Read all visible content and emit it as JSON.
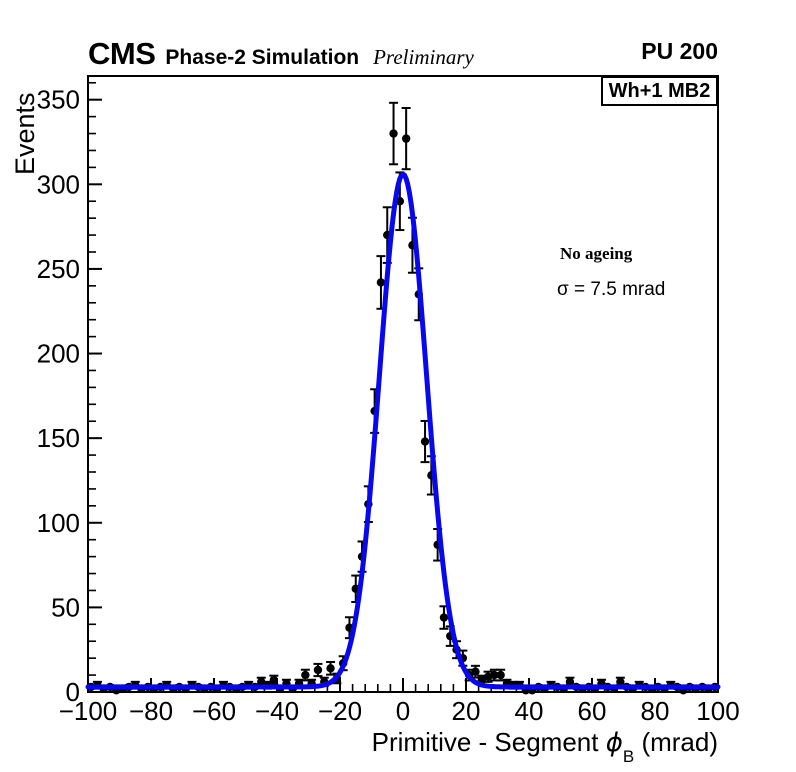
{
  "header": {
    "experiment": "CMS",
    "label": "Phase-2 Simulation",
    "sublabel": "Preliminary",
    "pileup": "PU 200"
  },
  "plot": {
    "corner_label": "Wh+1 MB2",
    "annotation_line1": "No ageing",
    "annotation_line2": "σ = 7.5 mrad"
  },
  "chart_data": {
    "type": "histogram+gaussian-fit",
    "title": "",
    "ylabel": "Events",
    "xlabel_parts": {
      "main": "Primitive - Segment ",
      "symbol": "ϕ",
      "subscript": "B",
      "unit": " (mrad)"
    },
    "xlim": [
      -100,
      100
    ],
    "ylim": [
      0,
      364
    ],
    "x_major_ticks": [
      -100,
      -80,
      -60,
      -40,
      -20,
      0,
      20,
      40,
      60,
      80,
      100
    ],
    "x_minor_step": 4,
    "y_major_ticks": [
      0,
      50,
      100,
      150,
      200,
      250,
      300,
      350
    ],
    "y_minor_step": 10,
    "grid": false,
    "legend_position": "none",
    "bin_width_mrad": 2,
    "bin_centers": [
      -99,
      -97,
      -95,
      -93,
      -91,
      -89,
      -87,
      -85,
      -83,
      -81,
      -79,
      -77,
      -75,
      -73,
      -71,
      -69,
      -67,
      -65,
      -63,
      -61,
      -59,
      -57,
      -55,
      -53,
      -51,
      -49,
      -47,
      -45,
      -43,
      -41,
      -39,
      -37,
      -35,
      -33,
      -31,
      -29,
      -27,
      -25,
      -23,
      -21,
      -19,
      -17,
      -15,
      -13,
      -11,
      -9,
      -7,
      -5,
      -3,
      -1,
      1,
      3,
      5,
      7,
      9,
      11,
      13,
      15,
      17,
      19,
      21,
      23,
      25,
      27,
      29,
      31,
      33,
      35,
      37,
      39,
      41,
      43,
      45,
      47,
      49,
      51,
      53,
      55,
      57,
      59,
      61,
      63,
      65,
      67,
      69,
      71,
      73,
      75,
      77,
      79,
      81,
      83,
      85,
      87,
      89,
      91,
      93,
      95,
      97,
      99
    ],
    "counts": [
      3,
      4,
      2,
      3,
      1,
      2,
      3,
      4,
      2,
      3,
      2,
      3,
      4,
      2,
      3,
      2,
      4,
      3,
      2,
      3,
      2,
      4,
      3,
      2,
      3,
      4,
      3,
      6,
      4,
      7,
      2,
      5,
      2,
      5,
      10,
      5,
      13,
      6,
      14,
      8,
      17,
      38,
      61,
      80,
      111,
      166,
      242,
      270,
      330,
      290,
      327,
      264,
      235,
      148,
      128,
      87,
      44,
      33,
      25,
      20,
      10,
      12,
      7,
      9,
      10,
      10,
      5,
      4,
      4,
      1,
      1,
      3,
      2,
      4,
      3,
      2,
      6,
      3,
      2,
      3,
      2,
      5,
      3,
      2,
      6,
      3,
      2,
      4,
      3,
      2,
      3,
      2,
      4,
      3,
      1,
      3,
      2,
      3,
      2,
      3
    ],
    "error_model": "sqrt(count)",
    "marker": {
      "shape": "filled-circle",
      "color": "#000000"
    },
    "fit": {
      "model": "gaussian + constant",
      "mean_mrad": 0,
      "sigma_mrad": 7.5,
      "amplitude": 303,
      "baseline": 3,
      "color": "#0808ee"
    }
  }
}
